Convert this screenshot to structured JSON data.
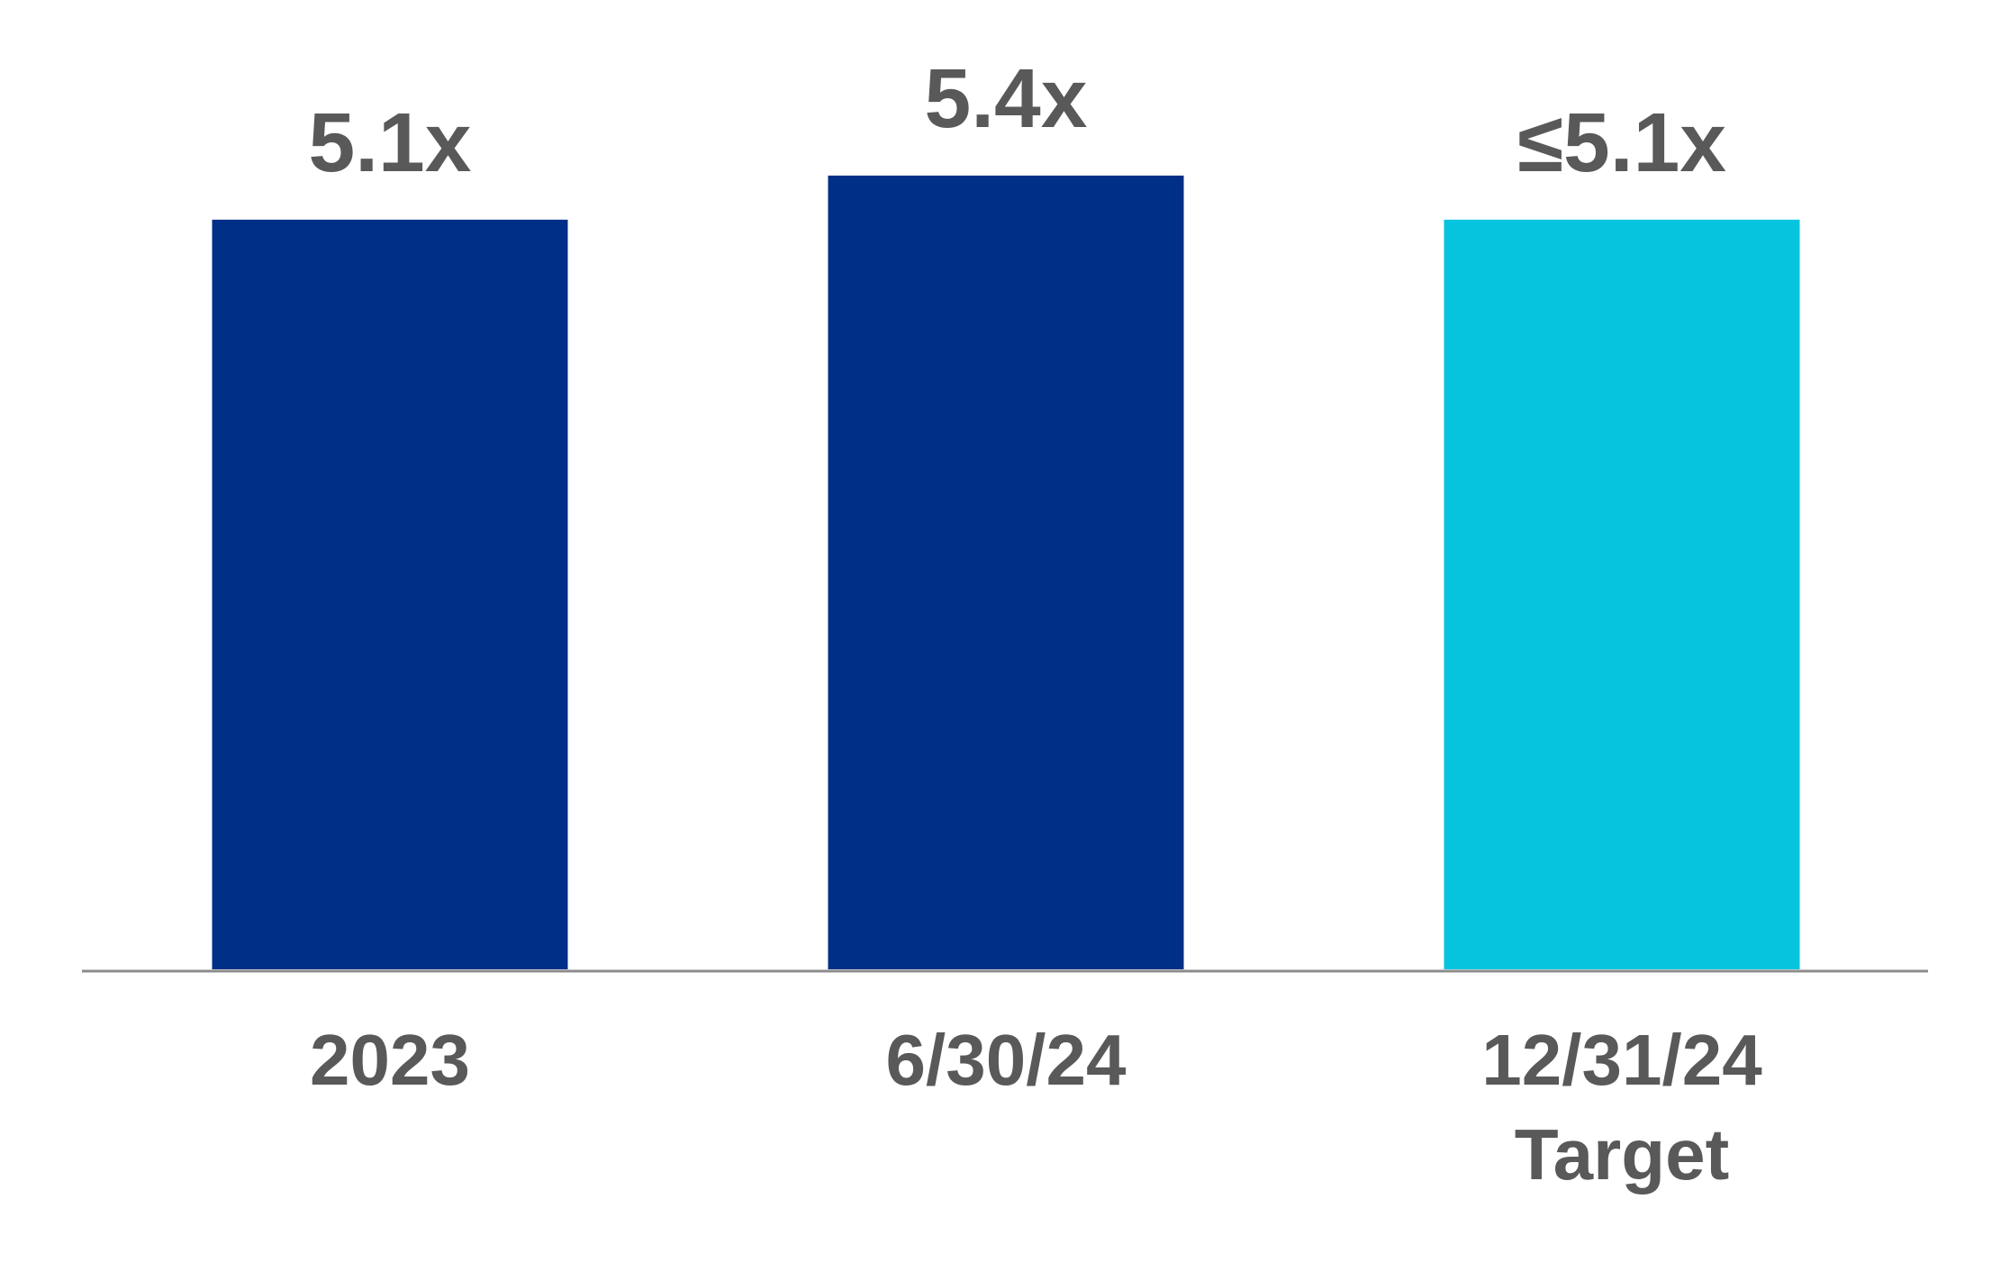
{
  "chart_data": {
    "type": "bar",
    "categories": [
      "2023",
      "6/30/24",
      "12/31/24\nTarget"
    ],
    "values": [
      5.1,
      5.4,
      5.1
    ],
    "value_labels": [
      "5.1x",
      "5.4x",
      "≤5.1x"
    ],
    "colors": [
      "#002f87",
      "#002f87",
      "#06c4de"
    ],
    "ylim": [
      0,
      6
    ]
  }
}
